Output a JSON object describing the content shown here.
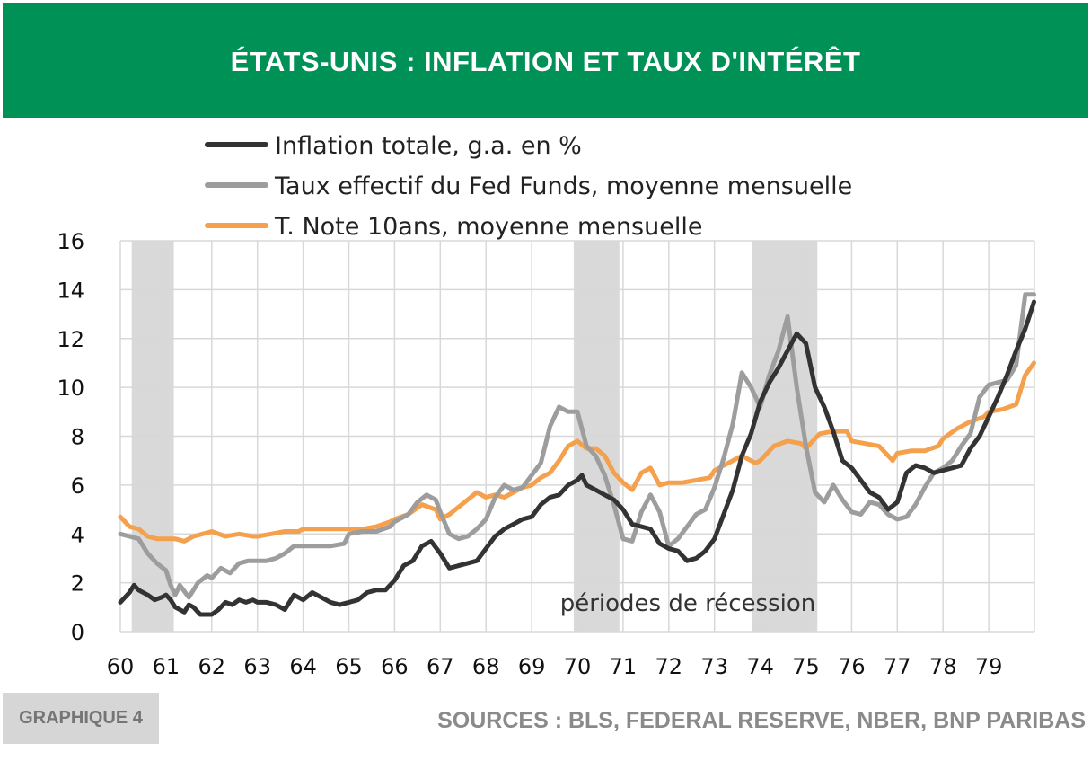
{
  "header": {
    "title": "ÉTATS-UNIS : INFLATION ET TAUX D'INTÉRÊT"
  },
  "footer": {
    "badge": "GRAPHIQUE 4",
    "sources": "SOURCES : BLS, FEDERAL RESERVE, NBER, BNP PARIBAS"
  },
  "chart_data": {
    "type": "line",
    "xlim": [
      1960,
      1980
    ],
    "ylim": [
      0,
      16
    ],
    "y_ticks": [
      0,
      2,
      4,
      6,
      8,
      10,
      12,
      14,
      16
    ],
    "x_ticks": [
      1960,
      1961,
      1962,
      1963,
      1964,
      1965,
      1966,
      1967,
      1968,
      1969,
      1970,
      1971,
      1972,
      1973,
      1974,
      1975,
      1976,
      1977,
      1978,
      1979
    ],
    "x_tick_labels": [
      "60",
      "61",
      "62",
      "63",
      "64",
      "65",
      "66",
      "67",
      "68",
      "69",
      "70",
      "71",
      "72",
      "73",
      "74",
      "75",
      "76",
      "77",
      "78",
      "79"
    ],
    "grid": true,
    "legend_position": "top-left",
    "annotation": "périodes de récession",
    "recessions": [
      [
        1960.25,
        1961.17
      ],
      [
        1969.92,
        1970.92
      ],
      [
        1973.83,
        1975.25
      ]
    ],
    "series": [
      {
        "name": "Inflation totale, g.a. en %",
        "color": "#333333",
        "x": [
          1960.0,
          1960.1,
          1960.2,
          1960.3,
          1960.4,
          1960.6,
          1960.75,
          1960.9,
          1961.0,
          1961.1,
          1961.2,
          1961.3,
          1961.4,
          1961.5,
          1961.6,
          1961.75,
          1961.9,
          1962.0,
          1962.15,
          1962.3,
          1962.45,
          1962.6,
          1962.75,
          1962.9,
          1963.0,
          1963.2,
          1963.4,
          1963.6,
          1963.8,
          1964.0,
          1964.2,
          1964.4,
          1964.6,
          1964.8,
          1965.0,
          1965.2,
          1965.4,
          1965.6,
          1965.8,
          1966.0,
          1966.2,
          1966.4,
          1966.6,
          1966.8,
          1967.0,
          1967.2,
          1967.4,
          1967.6,
          1967.8,
          1968.0,
          1968.2,
          1968.4,
          1968.6,
          1968.8,
          1969.0,
          1969.2,
          1969.4,
          1969.6,
          1969.8,
          1970.0,
          1970.1,
          1970.2,
          1970.4,
          1970.6,
          1970.8,
          1971.0,
          1971.2,
          1971.4,
          1971.6,
          1971.8,
          1972.0,
          1972.2,
          1972.4,
          1972.6,
          1972.8,
          1973.0,
          1973.2,
          1973.4,
          1973.6,
          1973.8,
          1974.0,
          1974.2,
          1974.4,
          1974.6,
          1974.8,
          1975.0,
          1975.2,
          1975.4,
          1975.6,
          1975.8,
          1976.0,
          1976.2,
          1976.4,
          1976.6,
          1976.8,
          1977.0,
          1977.2,
          1977.4,
          1977.6,
          1977.8,
          1978.0,
          1978.2,
          1978.4,
          1978.6,
          1978.8,
          1979.0,
          1979.2,
          1979.4,
          1979.6,
          1979.8,
          1979.99
        ],
        "y": [
          1.2,
          1.4,
          1.6,
          1.9,
          1.7,
          1.5,
          1.3,
          1.4,
          1.5,
          1.3,
          1.0,
          0.9,
          0.8,
          1.1,
          1.0,
          0.7,
          0.7,
          0.7,
          0.9,
          1.2,
          1.1,
          1.3,
          1.2,
          1.3,
          1.2,
          1.2,
          1.1,
          0.9,
          1.5,
          1.3,
          1.6,
          1.4,
          1.2,
          1.1,
          1.2,
          1.3,
          1.6,
          1.7,
          1.7,
          2.1,
          2.7,
          2.9,
          3.5,
          3.7,
          3.2,
          2.6,
          2.7,
          2.8,
          2.9,
          3.4,
          3.9,
          4.2,
          4.4,
          4.6,
          4.7,
          5.2,
          5.5,
          5.6,
          6.0,
          6.2,
          6.4,
          6.0,
          5.8,
          5.6,
          5.4,
          5.0,
          4.4,
          4.3,
          4.2,
          3.6,
          3.4,
          3.3,
          2.9,
          3.0,
          3.3,
          3.8,
          4.8,
          5.8,
          7.2,
          8.1,
          9.4,
          10.2,
          10.8,
          11.5,
          12.2,
          11.8,
          10.0,
          9.2,
          8.2,
          7.0,
          6.7,
          6.2,
          5.7,
          5.5,
          5.0,
          5.3,
          6.5,
          6.8,
          6.7,
          6.5,
          6.6,
          6.7,
          6.8,
          7.5,
          8.0,
          8.8,
          9.6,
          10.5,
          11.5,
          12.4,
          13.5
        ]
      },
      {
        "name": "Taux effectif du Fed Funds, moyenne mensuelle",
        "color": "#9d9d9d",
        "x": [
          1960.0,
          1960.2,
          1960.4,
          1960.6,
          1960.8,
          1961.0,
          1961.1,
          1961.2,
          1961.3,
          1961.5,
          1961.7,
          1961.9,
          1962.0,
          1962.2,
          1962.4,
          1962.6,
          1962.8,
          1963.0,
          1963.2,
          1963.4,
          1963.6,
          1963.8,
          1964.0,
          1964.3,
          1964.6,
          1964.9,
          1965.0,
          1965.3,
          1965.6,
          1965.9,
          1966.0,
          1966.3,
          1966.5,
          1966.7,
          1966.9,
          1967.0,
          1967.2,
          1967.4,
          1967.6,
          1967.8,
          1968.0,
          1968.2,
          1968.4,
          1968.6,
          1968.8,
          1969.0,
          1969.2,
          1969.4,
          1969.6,
          1969.8,
          1970.0,
          1970.2,
          1970.4,
          1970.6,
          1970.8,
          1971.0,
          1971.2,
          1971.4,
          1971.6,
          1971.8,
          1972.0,
          1972.2,
          1972.4,
          1972.6,
          1972.8,
          1973.0,
          1973.2,
          1973.4,
          1973.6,
          1973.8,
          1974.0,
          1974.2,
          1974.4,
          1974.6,
          1974.8,
          1975.0,
          1975.2,
          1975.4,
          1975.6,
          1975.8,
          1976.0,
          1976.2,
          1976.4,
          1976.6,
          1976.8,
          1977.0,
          1977.2,
          1977.4,
          1977.6,
          1977.8,
          1978.0,
          1978.2,
          1978.4,
          1978.6,
          1978.8,
          1979.0,
          1979.2,
          1979.4,
          1979.6,
          1979.8,
          1979.99
        ],
        "y": [
          4.0,
          3.9,
          3.8,
          3.2,
          2.8,
          2.5,
          1.9,
          1.5,
          1.9,
          1.4,
          2.0,
          2.3,
          2.2,
          2.6,
          2.4,
          2.8,
          2.9,
          2.9,
          2.9,
          3.0,
          3.2,
          3.5,
          3.5,
          3.5,
          3.5,
          3.6,
          4.0,
          4.1,
          4.1,
          4.3,
          4.5,
          4.8,
          5.3,
          5.6,
          5.4,
          4.9,
          4.0,
          3.8,
          3.9,
          4.2,
          4.6,
          5.5,
          6.0,
          5.8,
          5.9,
          6.4,
          6.9,
          8.4,
          9.2,
          9.0,
          9.0,
          7.6,
          7.2,
          6.4,
          5.2,
          3.8,
          3.7,
          4.9,
          5.6,
          4.9,
          3.5,
          3.8,
          4.3,
          4.8,
          5.0,
          5.9,
          7.1,
          8.5,
          10.6,
          10.0,
          9.2,
          10.5,
          11.5,
          12.9,
          10.0,
          7.6,
          5.7,
          5.3,
          6.0,
          5.4,
          4.9,
          4.8,
          5.3,
          5.2,
          4.8,
          4.6,
          4.7,
          5.2,
          5.9,
          6.5,
          6.7,
          7.0,
          7.6,
          8.1,
          9.6,
          10.1,
          10.2,
          10.3,
          10.9,
          13.8,
          13.8
        ]
      },
      {
        "name": "T. Note 10ans, moyenne mensuelle",
        "color": "#f4a04d",
        "x": [
          1960.0,
          1960.2,
          1960.4,
          1960.6,
          1960.8,
          1961.0,
          1961.2,
          1961.4,
          1961.6,
          1961.8,
          1962.0,
          1962.3,
          1962.6,
          1962.9,
          1963.0,
          1963.3,
          1963.6,
          1963.9,
          1964.0,
          1964.3,
          1964.6,
          1964.9,
          1965.0,
          1965.3,
          1965.6,
          1965.9,
          1966.0,
          1966.3,
          1966.6,
          1966.9,
          1967.0,
          1967.2,
          1967.4,
          1967.6,
          1967.8,
          1968.0,
          1968.2,
          1968.4,
          1968.6,
          1968.8,
          1969.0,
          1969.2,
          1969.4,
          1969.6,
          1969.8,
          1970.0,
          1970.2,
          1970.4,
          1970.6,
          1970.8,
          1971.0,
          1971.2,
          1971.4,
          1971.6,
          1971.8,
          1972.0,
          1972.3,
          1972.6,
          1972.9,
          1973.0,
          1973.3,
          1973.6,
          1973.9,
          1974.0,
          1974.3,
          1974.6,
          1974.9,
          1975.0,
          1975.3,
          1975.6,
          1975.9,
          1976.0,
          1976.3,
          1976.6,
          1976.9,
          1977.0,
          1977.3,
          1977.6,
          1977.9,
          1978.0,
          1978.3,
          1978.6,
          1978.9,
          1979.0,
          1979.3,
          1979.6,
          1979.8,
          1979.99
        ],
        "y": [
          4.7,
          4.3,
          4.2,
          3.9,
          3.8,
          3.8,
          3.8,
          3.7,
          3.9,
          4.0,
          4.1,
          3.9,
          4.0,
          3.9,
          3.9,
          4.0,
          4.1,
          4.1,
          4.2,
          4.2,
          4.2,
          4.2,
          4.2,
          4.2,
          4.3,
          4.5,
          4.6,
          4.8,
          5.2,
          5.0,
          4.6,
          4.8,
          5.1,
          5.4,
          5.7,
          5.5,
          5.6,
          5.5,
          5.7,
          5.9,
          6.0,
          6.3,
          6.5,
          7.0,
          7.6,
          7.8,
          7.5,
          7.5,
          7.2,
          6.5,
          6.1,
          5.8,
          6.5,
          6.7,
          6.0,
          6.1,
          6.1,
          6.2,
          6.3,
          6.6,
          6.9,
          7.2,
          6.9,
          7.0,
          7.6,
          7.8,
          7.7,
          7.5,
          8.1,
          8.2,
          8.2,
          7.8,
          7.7,
          7.6,
          7.0,
          7.3,
          7.4,
          7.4,
          7.6,
          7.9,
          8.3,
          8.6,
          8.8,
          9.0,
          9.1,
          9.3,
          10.5,
          11.0
        ]
      }
    ]
  }
}
